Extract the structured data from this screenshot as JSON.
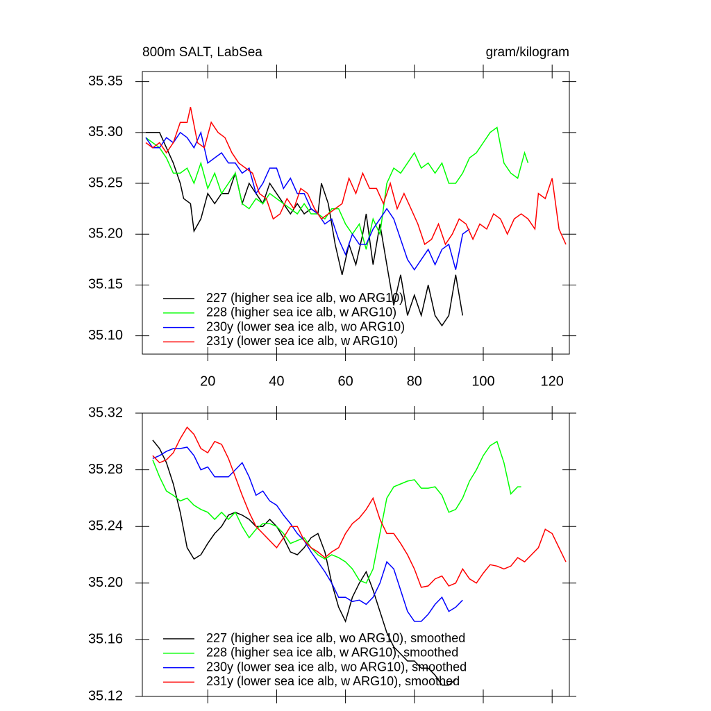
{
  "chart_data": [
    {
      "type": "line",
      "title": "800m SALT, LabSea",
      "units": "gram/kilogram",
      "xlim": [
        1,
        125
      ],
      "ylim": [
        35.082,
        35.36
      ],
      "xticks": [
        20,
        40,
        60,
        80,
        100,
        120
      ],
      "xtick_labels": true,
      "yticks": [
        {
          "value": 35.1,
          "label": "35.10"
        },
        35.15,
        {
          "value": 35.2,
          "label": "35.20"
        },
        35.25,
        {
          "value": 35.3,
          "label": "35.30"
        },
        35.35
      ],
      "series": [
        {
          "name": "227 (higher sea ice alb, wo ARG10)",
          "color": "#000000",
          "x": [
            2,
            4,
            6,
            8,
            10,
            12,
            13,
            15,
            16,
            18,
            20,
            22,
            24,
            26,
            28,
            30,
            32,
            34,
            36,
            38,
            40,
            42,
            44,
            46,
            48,
            50,
            52,
            53,
            55,
            57,
            59,
            61,
            63,
            65,
            66,
            68,
            70,
            72,
            74,
            76,
            78,
            80,
            82,
            84,
            86,
            88,
            90,
            92,
            94
          ],
          "values": [
            35.3,
            35.3,
            35.3,
            35.285,
            35.27,
            35.25,
            35.235,
            35.23,
            35.203,
            35.215,
            35.24,
            35.23,
            35.24,
            35.24,
            35.26,
            35.23,
            35.25,
            35.24,
            35.23,
            35.25,
            35.24,
            35.23,
            35.22,
            35.23,
            35.22,
            35.225,
            35.22,
            35.25,
            35.23,
            35.19,
            35.16,
            35.19,
            35.17,
            35.2,
            35.22,
            35.17,
            35.21,
            35.17,
            35.13,
            35.16,
            35.12,
            35.14,
            35.12,
            35.15,
            35.12,
            35.11,
            35.12,
            35.16,
            35.12
          ]
        },
        {
          "name": "228 (higher sea ice alb, w ARG10)",
          "color": "#00ff00",
          "x": [
            2,
            4,
            6,
            8,
            10,
            12,
            14,
            16,
            18,
            20,
            22,
            24,
            26,
            28,
            30,
            32,
            34,
            36,
            38,
            40,
            42,
            44,
            46,
            48,
            50,
            52,
            54,
            56,
            58,
            60,
            62,
            64,
            66,
            68,
            70,
            72,
            74,
            76,
            78,
            80,
            82,
            84,
            86,
            88,
            90,
            92,
            94,
            96,
            98,
            100,
            102,
            104,
            106,
            108,
            110,
            112,
            113
          ],
          "values": [
            35.295,
            35.29,
            35.285,
            35.275,
            35.26,
            35.26,
            35.265,
            35.25,
            35.27,
            35.245,
            35.26,
            35.24,
            35.25,
            35.26,
            35.23,
            35.225,
            35.235,
            35.23,
            35.24,
            35.235,
            35.23,
            35.225,
            35.22,
            35.23,
            35.22,
            35.22,
            35.215,
            35.225,
            35.225,
            35.21,
            35.2,
            35.21,
            35.185,
            35.215,
            35.2,
            35.25,
            35.265,
            35.26,
            35.27,
            35.28,
            35.265,
            35.27,
            35.26,
            35.27,
            35.25,
            35.25,
            35.26,
            35.275,
            35.28,
            35.29,
            35.3,
            35.305,
            35.27,
            35.26,
            35.255,
            35.28,
            35.27
          ]
        },
        {
          "name": "230y (lower sea ice alb, wo ARG10)",
          "color": "#0000ff",
          "x": [
            2,
            4,
            6,
            8,
            10,
            12,
            14,
            16,
            18,
            20,
            22,
            24,
            26,
            28,
            30,
            32,
            34,
            36,
            38,
            40,
            42,
            44,
            46,
            48,
            50,
            52,
            54,
            56,
            58,
            60,
            62,
            64,
            66,
            68,
            70,
            72,
            74,
            76,
            78,
            80,
            82,
            84,
            86,
            88,
            90,
            92,
            94,
            96
          ],
          "values": [
            35.295,
            35.285,
            35.285,
            35.295,
            35.29,
            35.3,
            35.295,
            35.285,
            35.3,
            35.27,
            35.275,
            35.28,
            35.27,
            35.27,
            35.26,
            35.265,
            35.24,
            35.25,
            35.265,
            35.265,
            35.245,
            35.255,
            35.24,
            35.24,
            35.225,
            35.22,
            35.21,
            35.215,
            35.195,
            35.18,
            35.2,
            35.19,
            35.19,
            35.205,
            35.215,
            35.225,
            35.215,
            35.195,
            35.175,
            35.165,
            35.175,
            35.185,
            35.17,
            35.185,
            35.19,
            35.165,
            35.2,
            35.205
          ]
        },
        {
          "name": "231y (lower sea ice alb, w ARG10)",
          "color": "#ff0000",
          "x": [
            2,
            4,
            6,
            8,
            10,
            12,
            14,
            15,
            17,
            19,
            21,
            23,
            25,
            27,
            29,
            31,
            33,
            35,
            37,
            39,
            41,
            43,
            45,
            47,
            49,
            51,
            53,
            55,
            57,
            59,
            61,
            63,
            65,
            67,
            69,
            71,
            73,
            75,
            77,
            79,
            81,
            83,
            85,
            87,
            89,
            91,
            93,
            95,
            97,
            99,
            101,
            103,
            105,
            107,
            109,
            111,
            113,
            115,
            116,
            118,
            120,
            122,
            124
          ],
          "values": [
            35.29,
            35.285,
            35.29,
            35.28,
            35.29,
            35.31,
            35.31,
            35.325,
            35.29,
            35.285,
            35.31,
            35.3,
            35.295,
            35.28,
            35.27,
            35.265,
            35.26,
            35.24,
            35.235,
            35.215,
            35.22,
            35.235,
            35.225,
            35.245,
            35.24,
            35.225,
            35.215,
            35.22,
            35.225,
            35.23,
            35.255,
            35.24,
            35.26,
            35.245,
            35.245,
            35.23,
            35.25,
            35.225,
            35.24,
            35.225,
            35.21,
            35.19,
            35.195,
            35.21,
            35.19,
            35.2,
            35.215,
            35.21,
            35.195,
            35.21,
            35.205,
            35.22,
            35.215,
            35.2,
            35.215,
            35.22,
            35.215,
            35.205,
            35.24,
            35.235,
            35.255,
            35.205,
            35.19
          ]
        }
      ]
    },
    {
      "type": "line",
      "xlim": [
        1,
        125
      ],
      "ylim": [
        35.12,
        35.32
      ],
      "xticks": [
        20,
        40,
        60,
        80,
        100,
        120
      ],
      "xtick_labels": false,
      "yticks": [
        35.12,
        35.16,
        {
          "value": 35.2,
          "label": "35.20"
        },
        35.24,
        35.28,
        35.32
      ],
      "series": [
        {
          "name": "227 (higher sea ice alb, wo ARG10), smoothed",
          "color": "#000000",
          "x": [
            4,
            6,
            8,
            10,
            12,
            14,
            16,
            18,
            20,
            22,
            24,
            26,
            28,
            30,
            32,
            34,
            36,
            38,
            40,
            42,
            44,
            46,
            48,
            50,
            52,
            54,
            56,
            58,
            60,
            62,
            64,
            66,
            68,
            70,
            72,
            74,
            76,
            78,
            80,
            82,
            84,
            86,
            88,
            90,
            92
          ],
          "values": [
            35.301,
            35.295,
            35.285,
            35.27,
            35.25,
            35.225,
            35.217,
            35.22,
            35.228,
            35.235,
            35.24,
            35.248,
            35.25,
            35.248,
            35.245,
            35.24,
            35.24,
            35.245,
            35.24,
            35.232,
            35.222,
            35.22,
            35.225,
            35.232,
            35.235,
            35.222,
            35.2,
            35.183,
            35.173,
            35.19,
            35.2,
            35.208,
            35.195,
            35.18,
            35.165,
            35.155,
            35.15,
            35.145,
            35.145,
            35.14,
            35.14,
            35.135,
            35.128,
            35.128,
            35.132
          ]
        },
        {
          "name": "228 (higher sea ice alb, w ARG10), smoothed",
          "color": "#00ff00",
          "x": [
            4,
            6,
            8,
            10,
            12,
            14,
            16,
            18,
            20,
            22,
            24,
            26,
            28,
            30,
            32,
            34,
            36,
            38,
            40,
            42,
            44,
            46,
            48,
            50,
            52,
            54,
            56,
            58,
            60,
            62,
            64,
            66,
            68,
            70,
            72,
            74,
            76,
            78,
            80,
            82,
            84,
            86,
            88,
            90,
            92,
            94,
            96,
            98,
            100,
            102,
            104,
            106,
            108,
            110,
            111
          ],
          "values": [
            35.287,
            35.275,
            35.265,
            35.262,
            35.258,
            35.26,
            35.255,
            35.252,
            35.25,
            35.245,
            35.25,
            35.245,
            35.25,
            35.24,
            35.232,
            35.238,
            35.242,
            35.242,
            35.24,
            35.235,
            35.228,
            35.23,
            35.232,
            35.225,
            35.22,
            35.217,
            35.22,
            35.218,
            35.215,
            35.21,
            35.202,
            35.2,
            35.21,
            35.235,
            35.26,
            35.268,
            35.27,
            35.272,
            35.273,
            35.267,
            35.267,
            35.268,
            35.262,
            35.25,
            35.252,
            35.26,
            35.272,
            35.28,
            35.29,
            35.297,
            35.3,
            35.285,
            35.263,
            35.268,
            35.268
          ]
        },
        {
          "name": "230y (lower sea ice alb, wo ARG10), smoothed",
          "color": "#0000ff",
          "x": [
            4,
            6,
            8,
            10,
            12,
            14,
            16,
            18,
            20,
            22,
            24,
            26,
            28,
            30,
            32,
            34,
            36,
            38,
            40,
            42,
            44,
            46,
            48,
            50,
            52,
            54,
            56,
            58,
            60,
            62,
            64,
            66,
            68,
            70,
            72,
            74,
            76,
            78,
            80,
            82,
            84,
            86,
            88,
            90,
            92,
            94
          ],
          "values": [
            35.288,
            35.29,
            35.293,
            35.295,
            35.295,
            35.296,
            35.29,
            35.28,
            35.282,
            35.275,
            35.275,
            35.275,
            35.28,
            35.285,
            35.275,
            35.262,
            35.265,
            35.258,
            35.255,
            35.248,
            35.242,
            35.235,
            35.23,
            35.222,
            35.215,
            35.208,
            35.2,
            35.19,
            35.19,
            35.187,
            35.188,
            35.185,
            35.19,
            35.2,
            35.215,
            35.21,
            35.195,
            35.18,
            35.173,
            35.173,
            35.178,
            35.185,
            35.19,
            35.18,
            35.183,
            35.188
          ]
        },
        {
          "name": "231y (lower sea ice alb, w ARG10), smoothed",
          "color": "#ff0000",
          "x": [
            4,
            6,
            8,
            10,
            12,
            14,
            16,
            18,
            20,
            22,
            24,
            26,
            28,
            30,
            32,
            34,
            36,
            38,
            40,
            42,
            44,
            46,
            48,
            50,
            52,
            54,
            56,
            58,
            60,
            62,
            64,
            66,
            68,
            70,
            72,
            74,
            76,
            78,
            80,
            82,
            84,
            86,
            88,
            90,
            92,
            94,
            96,
            98,
            100,
            102,
            104,
            106,
            108,
            110,
            112,
            114,
            116,
            118,
            120,
            122,
            124
          ],
          "values": [
            35.29,
            35.285,
            35.287,
            35.292,
            35.302,
            35.31,
            35.305,
            35.295,
            35.292,
            35.3,
            35.298,
            35.288,
            35.275,
            35.262,
            35.25,
            35.24,
            35.235,
            35.23,
            35.225,
            35.232,
            35.24,
            35.24,
            35.23,
            35.225,
            35.222,
            35.218,
            35.222,
            35.225,
            35.235,
            35.242,
            35.246,
            35.252,
            35.26,
            35.245,
            35.235,
            35.235,
            35.228,
            35.22,
            35.21,
            35.197,
            35.198,
            35.203,
            35.205,
            35.198,
            35.2,
            35.21,
            35.203,
            35.2,
            35.207,
            35.213,
            35.212,
            35.21,
            35.212,
            35.218,
            35.215,
            35.22,
            35.225,
            35.238,
            35.235,
            35.225,
            35.215
          ]
        }
      ]
    }
  ]
}
